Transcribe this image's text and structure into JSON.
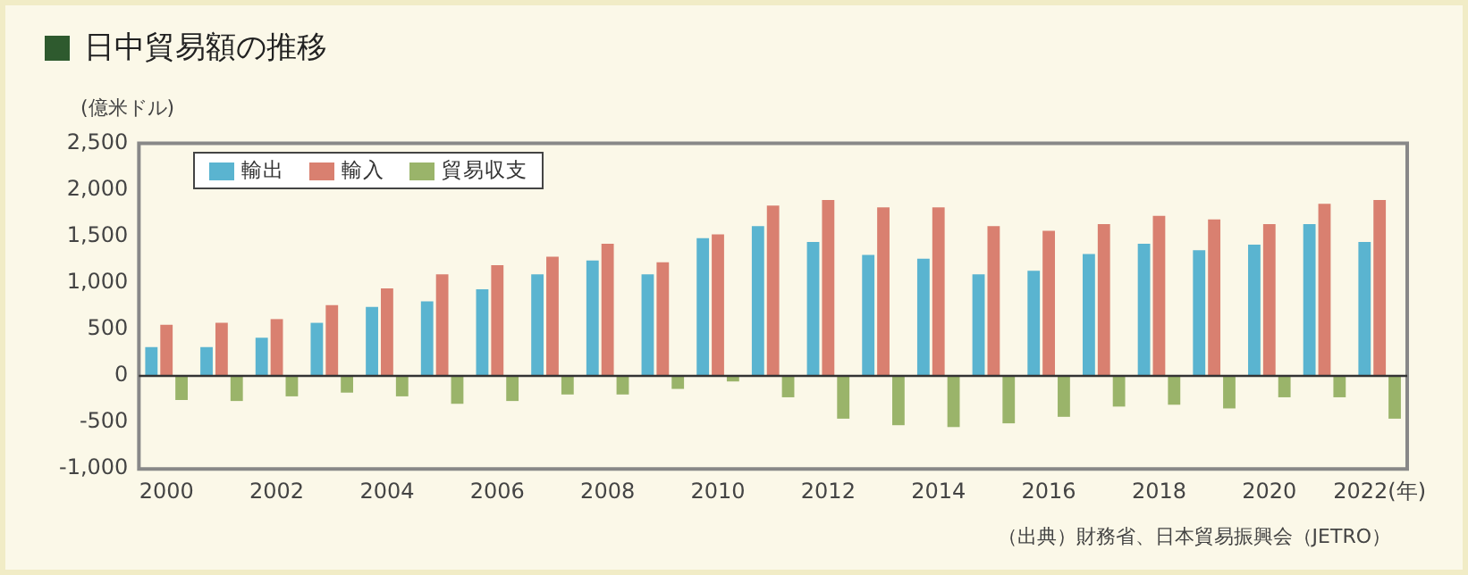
{
  "chart_data": {
    "type": "bar",
    "title": "日中貿易額の推移",
    "ylabel": "(億米ドル)",
    "categories": [
      "2000",
      null,
      "2002",
      null,
      "2004",
      null,
      "2006",
      null,
      "2008",
      null,
      "2010",
      null,
      "2012",
      null,
      "2014",
      null,
      "2016",
      null,
      "2018",
      null,
      "2020",
      null,
      "2022(年)"
    ],
    "series": [
      {
        "name": "輸出",
        "color": "#5ab4d0",
        "values": [
          310,
          310,
          410,
          570,
          740,
          800,
          930,
          1090,
          1240,
          1090,
          1480,
          1610,
          1440,
          1300,
          1260,
          1090,
          1130,
          1310,
          1420,
          1350,
          1410,
          1630,
          1440
        ]
      },
      {
        "name": "輸入",
        "color": "#d98070",
        "values": [
          550,
          570,
          610,
          760,
          940,
          1090,
          1190,
          1280,
          1420,
          1220,
          1520,
          1830,
          1890,
          1810,
          1810,
          1610,
          1560,
          1630,
          1720,
          1680,
          1630,
          1850,
          1890
        ]
      },
      {
        "name": "貿易収支",
        "color": "#9ab46a",
        "values": [
          -260,
          -270,
          -220,
          -180,
          -220,
          -300,
          -270,
          -200,
          -200,
          -140,
          -60,
          -230,
          -460,
          -530,
          -550,
          -510,
          -440,
          -330,
          -310,
          -350,
          -230,
          -230,
          -460
        ]
      }
    ],
    "ylim": [
      -1000,
      2500
    ],
    "yticks": [
      {
        "value": -1000,
        "label": "-1,000"
      },
      -500,
      0,
      500,
      {
        "value": 1000,
        "label": "1,000"
      },
      {
        "value": 1500,
        "label": "1,500"
      },
      {
        "value": 2000,
        "label": "2,000"
      },
      {
        "value": 2500,
        "label": "2,500"
      }
    ],
    "ref_lines": [
      {
        "axis": "y",
        "value": 0,
        "color": "#333333"
      }
    ],
    "legend": "top left",
    "annotations": [
      "（出典）財務省、日本貿易振興会（JETRO）"
    ]
  }
}
